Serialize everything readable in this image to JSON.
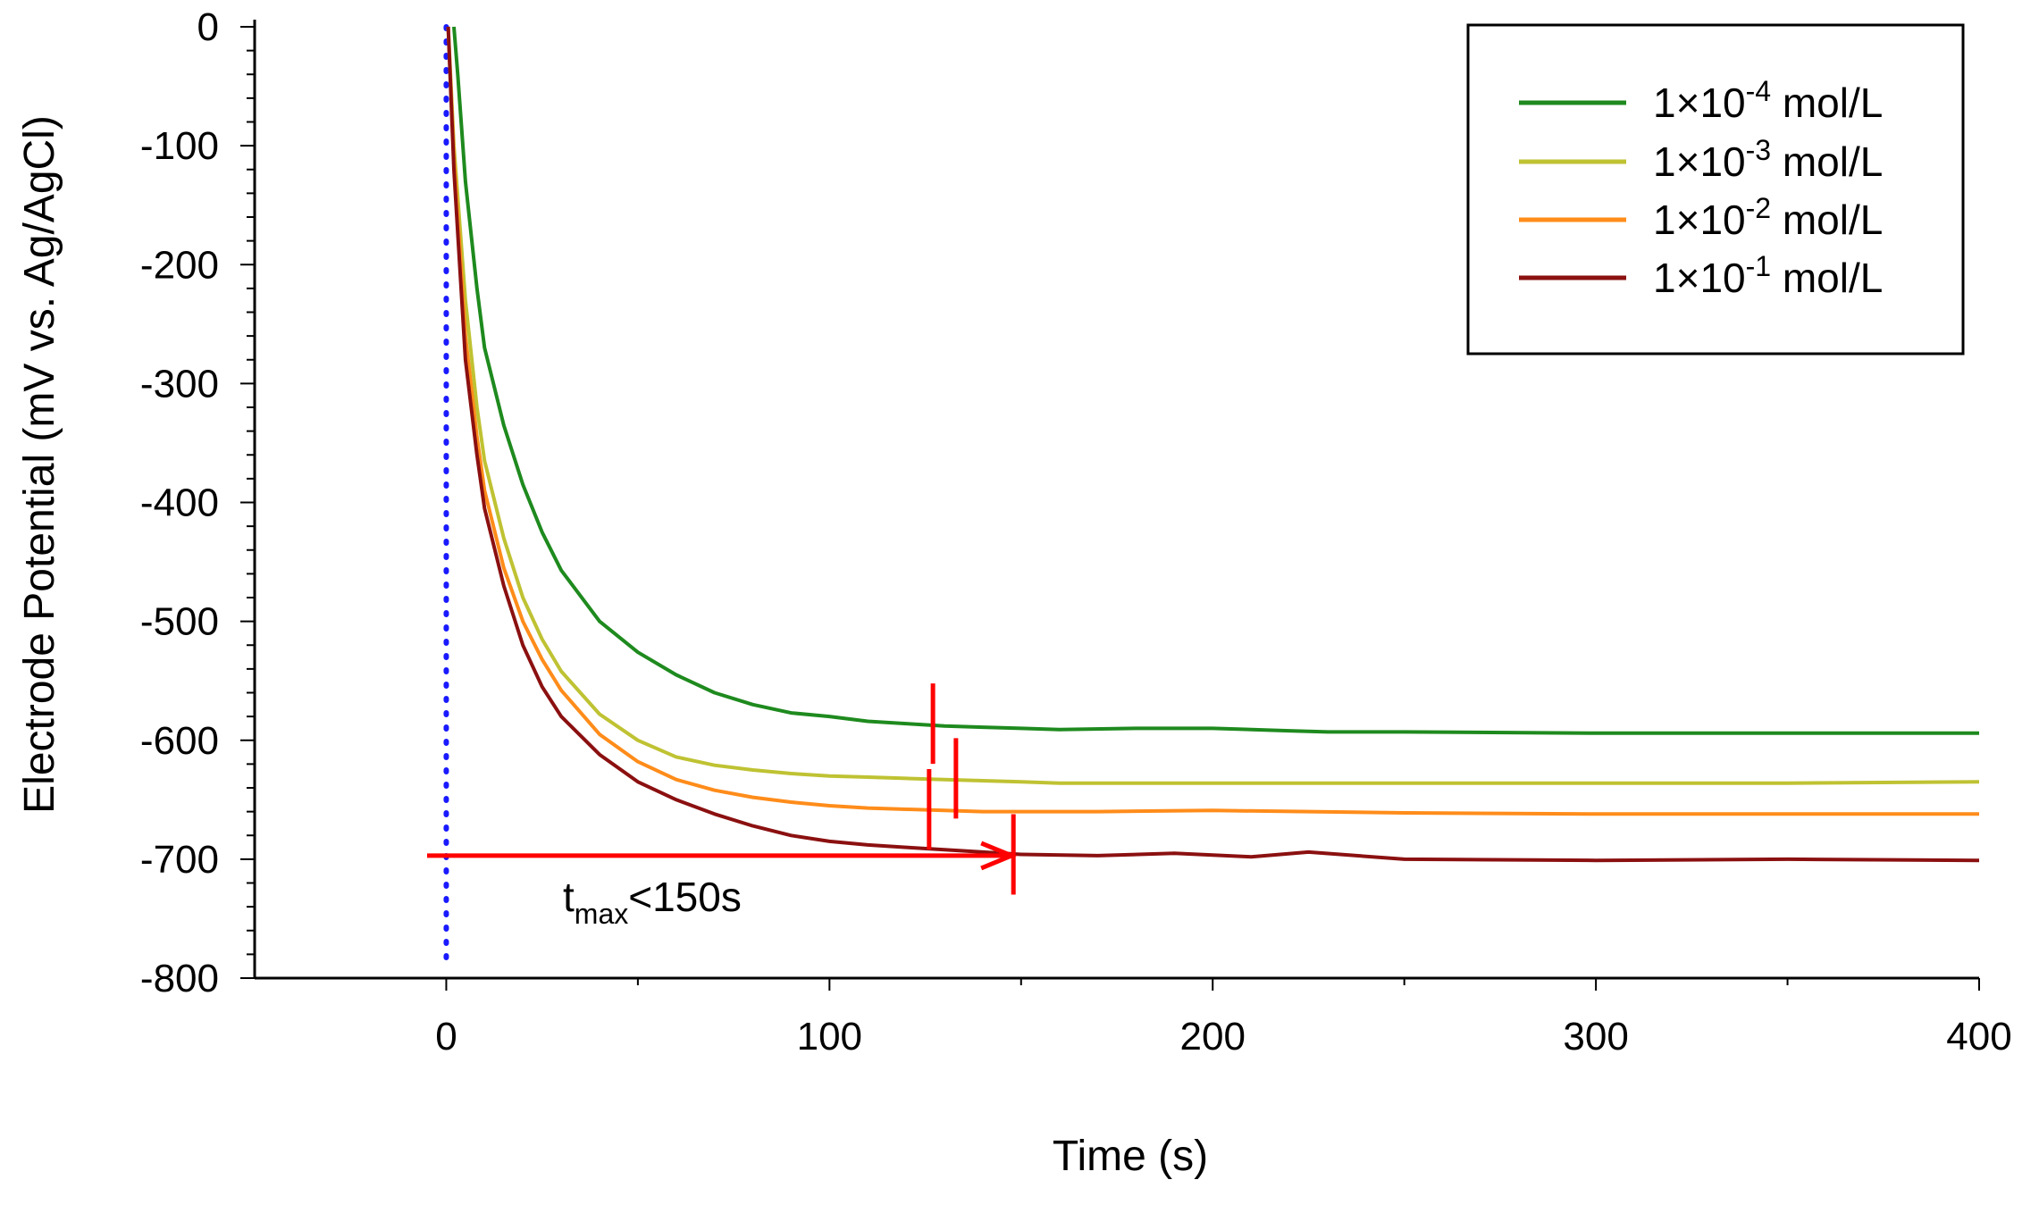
{
  "chart_data": {
    "type": "line",
    "title": "",
    "xlabel": "Time (s)",
    "ylabel": "Electrode Potential (mV vs. Ag/AgCl)",
    "xlim": [
      -50,
      400
    ],
    "ylim": [
      -800,
      0
    ],
    "x_ticks": [
      "0",
      "100",
      "200",
      "300",
      "400"
    ],
    "y_ticks": [
      "0",
      "-100",
      "-200",
      "-300",
      "-400",
      "-500",
      "-600",
      "-700",
      "-800"
    ],
    "legend_position": "top-right",
    "series": [
      {
        "name": "1×10-4 mol/L",
        "legend_base": "1×10",
        "legend_exp": "-4",
        "legend_unit": " mol/L",
        "color": "#1e8a1e",
        "x": [
          2,
          3,
          5,
          8,
          10,
          15,
          20,
          25,
          30,
          40,
          50,
          60,
          70,
          80,
          90,
          100,
          110,
          120,
          130,
          140,
          150,
          160,
          180,
          200,
          220,
          230,
          250,
          300,
          350,
          400
        ],
        "y": [
          0,
          -40,
          -130,
          -220,
          -270,
          -335,
          -385,
          -425,
          -457,
          -500,
          -526,
          -545,
          -560,
          -570,
          -577,
          -580,
          -584,
          -586,
          -588,
          -589,
          -590,
          -591,
          -590,
          -590,
          -592,
          -593,
          -593,
          -594,
          -594,
          -594
        ]
      },
      {
        "name": "1×10-3 mol/L",
        "legend_base": "1×10",
        "legend_exp": "-3",
        "legend_unit": " mol/L",
        "color": "#bfc232",
        "x": [
          0.5,
          2,
          5,
          8,
          10,
          15,
          20,
          25,
          30,
          40,
          50,
          60,
          70,
          80,
          90,
          100,
          110,
          120,
          130,
          140,
          150,
          160,
          200,
          250,
          300,
          350,
          400
        ],
        "y": [
          0,
          -100,
          -230,
          -320,
          -365,
          -430,
          -480,
          -515,
          -542,
          -578,
          -600,
          -614,
          -621,
          -625,
          -628,
          -630,
          -631,
          -632,
          -633,
          -634,
          -635,
          -636,
          -636,
          -636,
          -636,
          -636,
          -635
        ]
      },
      {
        "name": "1×10-2 mol/L",
        "legend_base": "1×10",
        "legend_exp": "-2",
        "legend_unit": " mol/L",
        "color": "#ff8c1a",
        "x": [
          0.5,
          2,
          5,
          8,
          10,
          15,
          20,
          25,
          30,
          40,
          50,
          60,
          70,
          80,
          90,
          100,
          110,
          120,
          130,
          140,
          150,
          170,
          200,
          250,
          300,
          350,
          400
        ],
        "y": [
          0,
          -110,
          -260,
          -345,
          -390,
          -455,
          -500,
          -532,
          -558,
          -595,
          -618,
          -633,
          -642,
          -648,
          -652,
          -655,
          -657,
          -658,
          -659,
          -660,
          -660,
          -660,
          -659,
          -661,
          -662,
          -662,
          -662
        ]
      },
      {
        "name": "1×10-1 mol/L",
        "legend_base": "1×10",
        "legend_exp": "-1",
        "legend_unit": " mol/L",
        "color": "#8b1010",
        "x": [
          0.5,
          2,
          5,
          8,
          10,
          15,
          20,
          25,
          30,
          40,
          50,
          60,
          70,
          80,
          90,
          100,
          110,
          120,
          130,
          140,
          150,
          170,
          190,
          210,
          225,
          250,
          300,
          350,
          400
        ],
        "y": [
          0,
          -120,
          -280,
          -360,
          -405,
          -470,
          -520,
          -555,
          -580,
          -612,
          -635,
          -650,
          -662,
          -672,
          -680,
          -685,
          -688,
          -690,
          -692,
          -694,
          -696,
          -697,
          -695,
          -698,
          -694,
          -700,
          -701,
          -700,
          -701
        ]
      }
    ],
    "annotations": {
      "tmax_label_main": "t",
      "tmax_label_sub": "max",
      "tmax_label_rest": "<150s",
      "arrow_from_x": -5,
      "arrow_to_x": 148,
      "arrow_y": -697,
      "marker_color": "#ff0000",
      "reference_line_color": "#1a1aff",
      "reference_line_x": 0,
      "markers": [
        {
          "series": "1×10-4 mol/L",
          "x": 127,
          "y": -586
        },
        {
          "series": "1×10-3 mol/L",
          "x": 133,
          "y": -632
        },
        {
          "series": "1×10-2 mol/L",
          "x": 126,
          "y": -658
        },
        {
          "series": "1×10-1 mol/L",
          "x": 148,
          "y": -696
        }
      ]
    }
  }
}
